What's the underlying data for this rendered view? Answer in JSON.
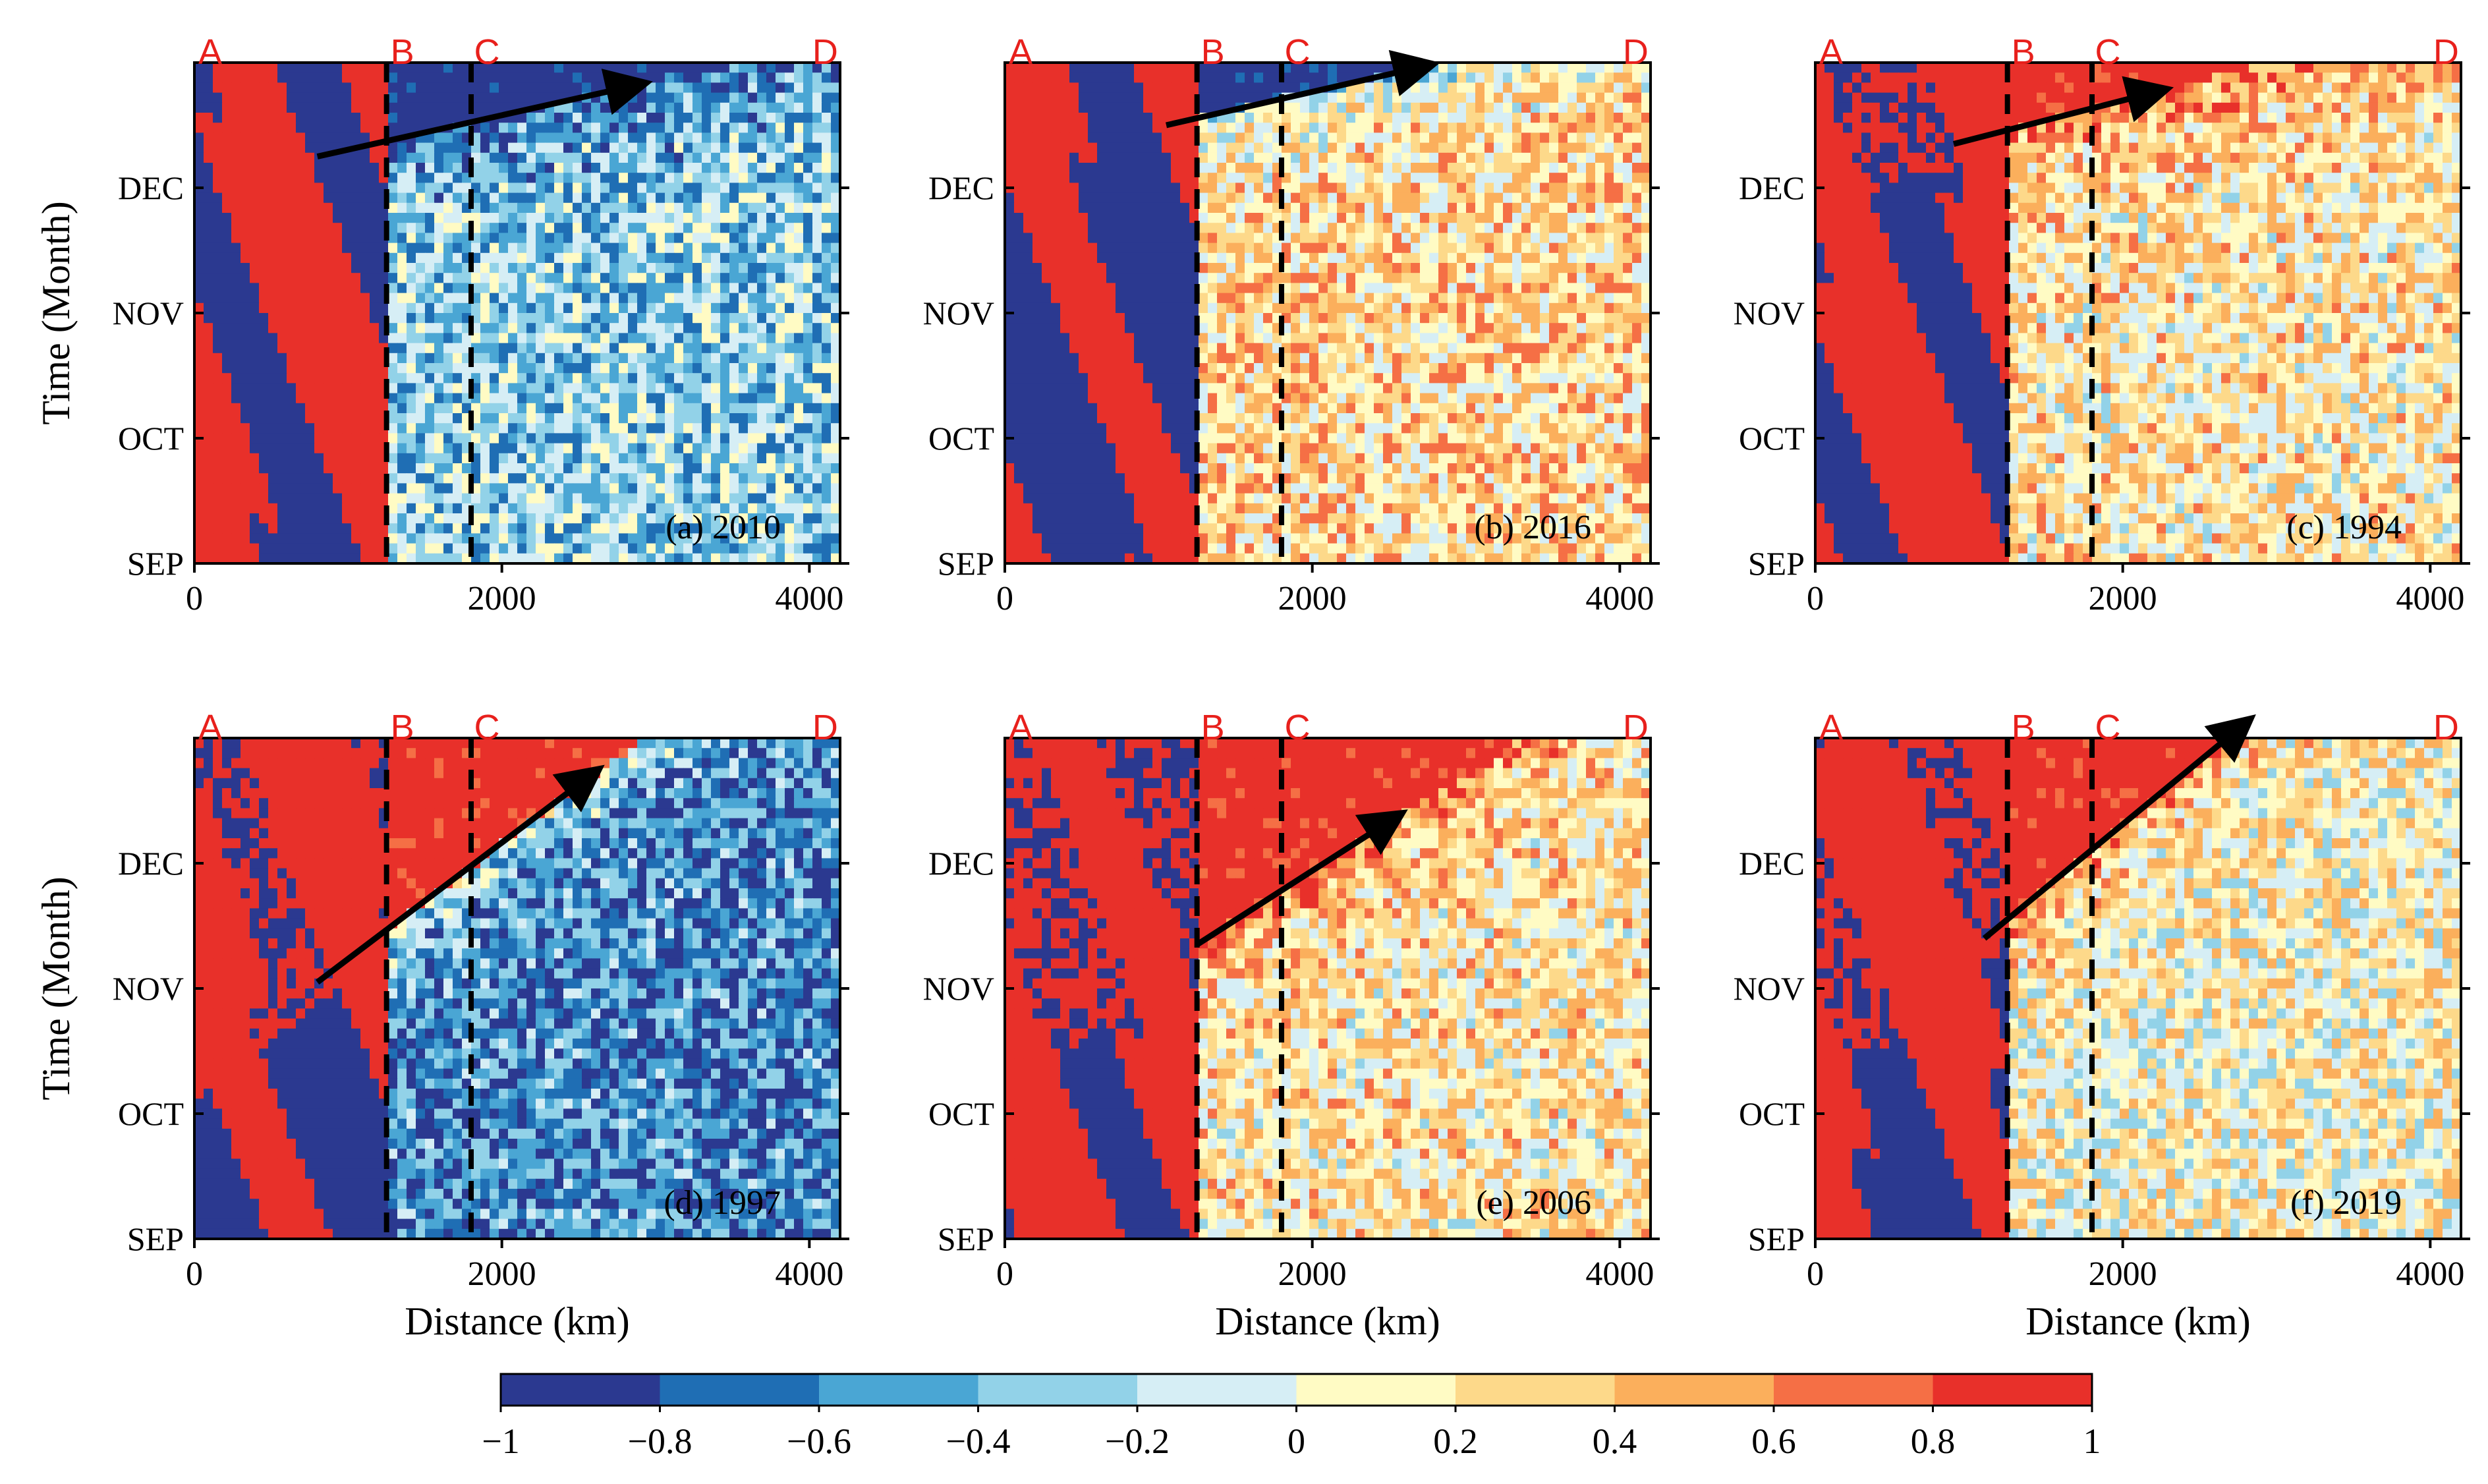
{
  "chart_data": [
    {
      "type": "heatmap",
      "panel_label": "(a) 2010",
      "xlabel": "",
      "ylabel": "Time (Month)",
      "xlim": [
        0,
        4200
      ],
      "x_ticks": [
        "0",
        "2000",
        "4000"
      ],
      "y_ticks": [
        "SEP",
        "OCT",
        "NOV",
        "DEC"
      ],
      "location_markers": [
        {
          "label": "A",
          "x": 0
        },
        {
          "label": "B",
          "x": 1250
        },
        {
          "label": "C",
          "x": 1800
        },
        {
          "label": "D",
          "x": 4000
        }
      ],
      "dashed_lines_x": [
        1250,
        1800
      ],
      "propagation_arrow": {
        "from": [
          800,
          3.25
        ],
        "to": [
          2950,
          3.85
        ]
      },
      "west_anomaly_sign": "mixed",
      "wedge_sign": -1,
      "east_anomaly_sign": -0.3
    },
    {
      "type": "heatmap",
      "panel_label": "(b) 2016",
      "xlabel": "",
      "ylabel": "",
      "xlim": [
        0,
        4200
      ],
      "x_ticks": [
        "0",
        "2000",
        "4000"
      ],
      "y_ticks": [
        "SEP",
        "OCT",
        "NOV",
        "DEC"
      ],
      "location_markers": [
        {
          "label": "A",
          "x": 0
        },
        {
          "label": "B",
          "x": 1250
        },
        {
          "label": "C",
          "x": 1800
        },
        {
          "label": "D",
          "x": 4000
        }
      ],
      "dashed_lines_x": [
        1250,
        1800
      ],
      "propagation_arrow": {
        "from": [
          1050,
          3.5
        ],
        "to": [
          2800,
          4.0
        ]
      },
      "west_anomaly_sign": "mixed",
      "wedge_sign": -1,
      "east_anomaly_sign": 0.3
    },
    {
      "type": "heatmap",
      "panel_label": "(c) 1994",
      "xlabel": "",
      "ylabel": "",
      "xlim": [
        0,
        4200
      ],
      "x_ticks": [
        "0",
        "2000",
        "4000"
      ],
      "y_ticks": [
        "SEP",
        "OCT",
        "NOV",
        "DEC"
      ],
      "location_markers": [
        {
          "label": "A",
          "x": 0
        },
        {
          "label": "B",
          "x": 1250
        },
        {
          "label": "C",
          "x": 1800
        },
        {
          "label": "D",
          "x": 4000
        }
      ],
      "dashed_lines_x": [
        1250,
        1800
      ],
      "propagation_arrow": {
        "from": [
          900,
          3.35
        ],
        "to": [
          2300,
          3.8
        ]
      },
      "west_anomaly_sign": "mixed",
      "wedge_sign": 1,
      "east_anomaly_sign": 0.2
    },
    {
      "type": "heatmap",
      "panel_label": "(d) 1997",
      "xlabel": "Distance (km)",
      "ylabel": "Time (Month)",
      "xlim": [
        0,
        4200
      ],
      "x_ticks": [
        "0",
        "2000",
        "4000"
      ],
      "y_ticks": [
        "SEP",
        "OCT",
        "NOV",
        "DEC"
      ],
      "location_markers": [
        {
          "label": "A",
          "x": 0
        },
        {
          "label": "B",
          "x": 1250
        },
        {
          "label": "C",
          "x": 1800
        },
        {
          "label": "D",
          "x": 4000
        }
      ],
      "dashed_lines_x": [
        1250,
        1800
      ],
      "propagation_arrow": {
        "from": [
          800,
          2.05
        ],
        "to": [
          2650,
          3.75
        ]
      },
      "west_anomaly_sign": "mixed",
      "wedge_sign": 1,
      "east_anomaly_sign": -0.6
    },
    {
      "type": "heatmap",
      "panel_label": "(e) 2006",
      "xlabel": "Distance (km)",
      "ylabel": "",
      "xlim": [
        0,
        4200
      ],
      "x_ticks": [
        "0",
        "2000",
        "4000"
      ],
      "y_ticks": [
        "SEP",
        "OCT",
        "NOV",
        "DEC"
      ],
      "location_markers": [
        {
          "label": "A",
          "x": 0
        },
        {
          "label": "B",
          "x": 1250
        },
        {
          "label": "C",
          "x": 1800
        },
        {
          "label": "D",
          "x": 4000
        }
      ],
      "dashed_lines_x": [
        1250,
        1800
      ],
      "propagation_arrow": {
        "from": [
          1250,
          2.35
        ],
        "to": [
          2600,
          3.4
        ]
      },
      "west_anomaly_sign": "mixed",
      "wedge_sign": 1,
      "east_anomaly_sign": 0.2
    },
    {
      "type": "heatmap",
      "panel_label": "(f) 2019",
      "xlabel": "Distance (km)",
      "ylabel": "",
      "xlim": [
        0,
        4200
      ],
      "x_ticks": [
        "0",
        "2000",
        "4000"
      ],
      "y_ticks": [
        "SEP",
        "OCT",
        "NOV",
        "DEC"
      ],
      "location_markers": [
        {
          "label": "A",
          "x": 0
        },
        {
          "label": "B",
          "x": 1250
        },
        {
          "label": "C",
          "x": 1800
        },
        {
          "label": "D",
          "x": 4000
        }
      ],
      "dashed_lines_x": [
        1250,
        1800
      ],
      "propagation_arrow": {
        "from": [
          1100,
          2.4
        ],
        "to": [
          2850,
          4.15
        ]
      },
      "west_anomaly_sign": "mixed",
      "wedge_sign": 1,
      "east_anomaly_sign": 0.1
    }
  ],
  "colorbar": {
    "min": -1,
    "max": 1,
    "tick_labels": [
      "−1",
      "−0.8",
      "−0.6",
      "−0.4",
      "−0.2",
      "0",
      "0.2",
      "0.4",
      "0.6",
      "0.8",
      "1"
    ],
    "colors": [
      "#2b3990",
      "#1f6eb4",
      "#4aa6d4",
      "#92d2e8",
      "#d6eef5",
      "#fffbc4",
      "#fdd98a",
      "#fbaf5c",
      "#f56f45",
      "#e8302a"
    ]
  },
  "y_axis_range_months": [
    0,
    4
  ],
  "y_tick_month_positions": [
    0,
    1,
    2,
    3
  ]
}
